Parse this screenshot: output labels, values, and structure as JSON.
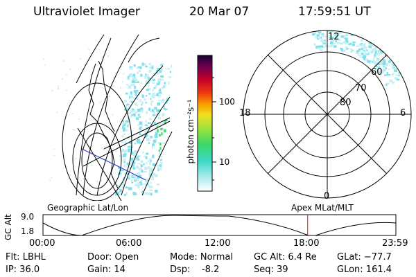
{
  "header": {
    "instrument": "Ultraviolet Imager",
    "date": "20 Mar 07",
    "time": "17:59:51 UT"
  },
  "colorbar": {
    "unit_label": "photon cm⁻²s⁻¹",
    "ticks": [
      "100",
      "10"
    ]
  },
  "polar_plot": {
    "mlt_labels": {
      "top": "12",
      "left": "18",
      "right": "6",
      "bottom": "0"
    },
    "lat_labels": [
      "60",
      "70",
      "80"
    ]
  },
  "timeline": {
    "y_label": "GC Alt",
    "y_max": "9.0",
    "y_min": "1.8",
    "left_title": "Geographic Lat/Lon",
    "right_title": "Apex  MLat/MLT",
    "x_ticks": [
      "00:00",
      "06:00",
      "12:00",
      "18:00",
      "23:59"
    ],
    "current_time_fraction": 0.75
  },
  "info": {
    "filter": "Flt: LBHL",
    "ip": "IP: 36.0",
    "door": "Door: Open",
    "gain": "Gain: 14",
    "mode": "Mode: Normal",
    "dsp": "Dsp:    -8.2",
    "gc_alt": "GC Alt: 6.4 Re",
    "seq": "Seq: 39",
    "glat": "GLat: −77.7",
    "glon": "GLon: 161.4"
  },
  "colors": {
    "aurora_light": "#c8f0f4",
    "aurora_mid": "#7fe0ea",
    "aurora_green": "#3ddc6a",
    "marker": "#ff0000",
    "track": "#1a2fbf"
  }
}
